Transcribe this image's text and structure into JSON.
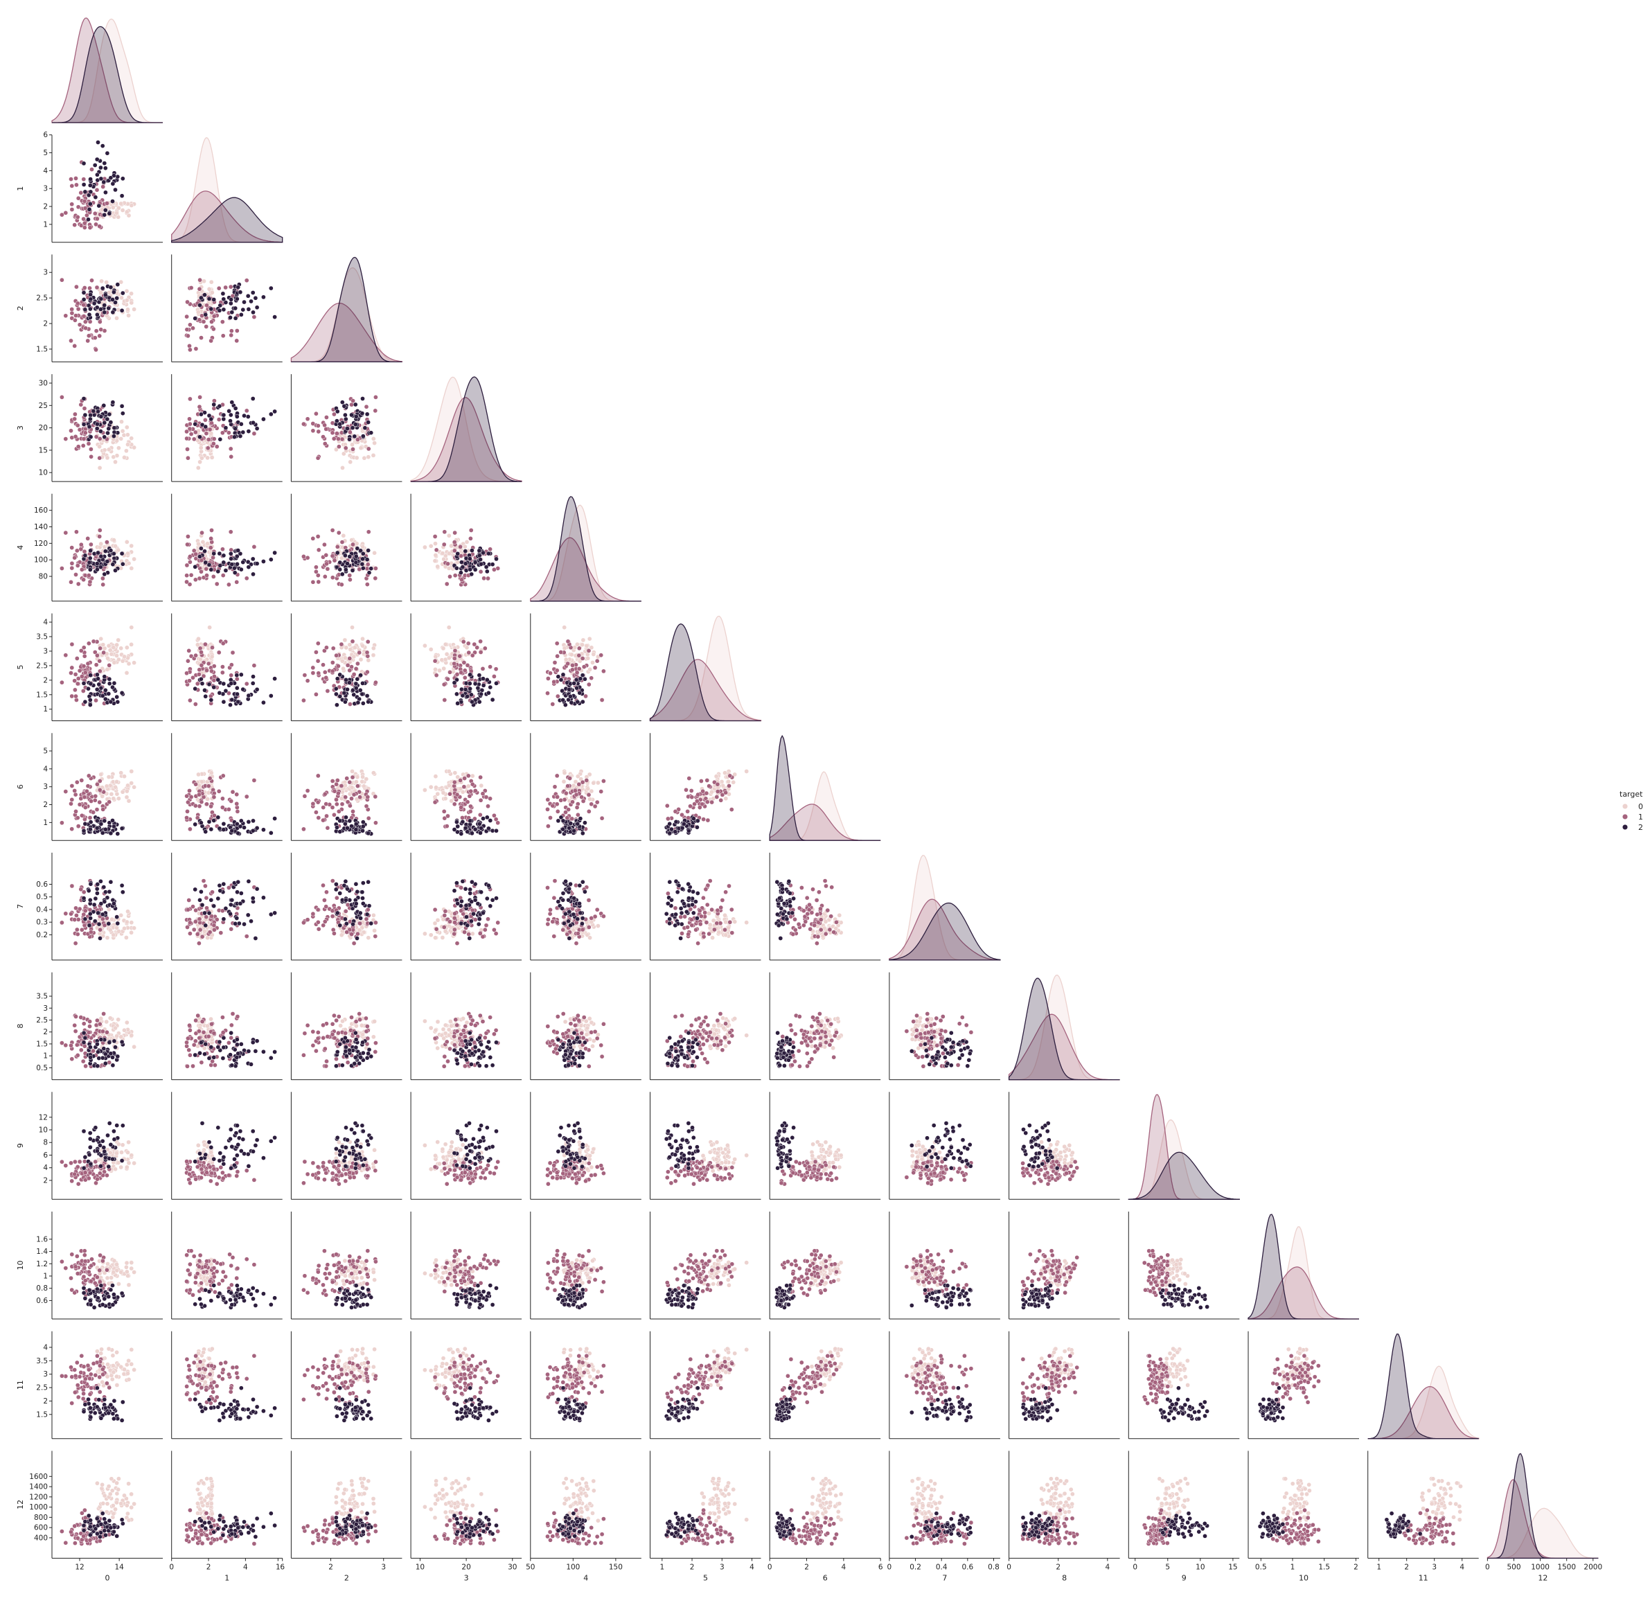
{
  "chart_data": {
    "type": "scatter",
    "subtype": "pairplot-corner",
    "variables": [
      "0",
      "1",
      "2",
      "3",
      "4",
      "5",
      "6",
      "7",
      "8",
      "9",
      "10",
      "11",
      "12"
    ],
    "hue": {
      "name": "target",
      "levels": [
        "0",
        "1",
        "2"
      ],
      "colors": [
        "#ecd2cf",
        "#a5637e",
        "#2d1e3e"
      ]
    },
    "diagonal": "kde",
    "off_diagonal": "scatter",
    "variable_stats": [
      {
        "ranges": [
          [
            12.8,
            14.8
          ],
          [
            11.0,
            13.5
          ],
          [
            12.2,
            14.3
          ]
        ],
        "means": [
          13.7,
          12.3,
          13.1
        ],
        "sds": [
          0.45,
          0.5,
          0.5
        ],
        "lim": [
          10.6,
          16.2
        ],
        "ticks": [
          12,
          14
        ]
      },
      {
        "ranges": [
          [
            1.4,
            2.2
          ],
          [
            0.8,
            4.5
          ],
          [
            1.0,
            5.8
          ]
        ],
        "means": [
          2.0,
          1.8,
          3.3
        ],
        "sds": [
          0.6,
          0.9,
          1.1
        ],
        "lim": [
          0.0,
          6.0
        ],
        "ticks": [
          1,
          2,
          3,
          4,
          5,
          6
        ],
        "xticks": [
          0,
          2,
          4,
          6
        ]
      },
      {
        "ranges": [
          [
            2.1,
            2.9
          ],
          [
            1.4,
            3.2
          ],
          [
            2.0,
            2.9
          ]
        ],
        "means": [
          2.45,
          2.25,
          2.42
        ],
        "sds": [
          0.22,
          0.3,
          0.18
        ],
        "lim": [
          1.25,
          3.35
        ],
        "ticks": [
          1.5,
          2.0,
          2.5,
          3.0
        ],
        "xticks": [
          1,
          2,
          3
        ]
      },
      {
        "ranges": [
          [
            11,
            25
          ],
          [
            10.5,
            30
          ],
          [
            17,
            27
          ]
        ],
        "means": [
          17.0,
          20.2,
          21.4
        ],
        "sds": [
          2.5,
          3.3,
          2.3
        ],
        "lim": [
          8,
          32
        ],
        "ticks": [
          10,
          15,
          20,
          25,
          30
        ],
        "xticks": [
          10,
          20,
          30
        ]
      },
      {
        "ranges": [
          [
            89,
            132
          ],
          [
            70,
            162
          ],
          [
            80,
            123
          ]
        ],
        "means": [
          106,
          94,
          99
        ],
        "sds": [
          10,
          16,
          11
        ],
        "lim": [
          50,
          180
        ],
        "ticks": [
          80,
          100,
          120,
          140,
          160
        ],
        "xticks": [
          50,
          100,
          150
        ]
      },
      {
        "ranges": [
          [
            2.2,
            3.9
          ],
          [
            1.1,
            3.5
          ],
          [
            1.0,
            2.8
          ]
        ],
        "means": [
          2.85,
          2.25,
          1.7
        ],
        "sds": [
          0.35,
          0.55,
          0.35
        ],
        "lim": [
          0.6,
          4.3
        ],
        "ticks": [
          1.0,
          1.5,
          2.0,
          2.5,
          3.0,
          3.5,
          4.0
        ],
        "xticks": [
          1,
          2,
          3,
          4
        ]
      },
      {
        "ranges": [
          [
            2.2,
            3.9
          ],
          [
            0.6,
            5.1
          ],
          [
            0.35,
            1.3
          ]
        ],
        "means": [
          2.98,
          2.08,
          0.78
        ],
        "sds": [
          0.4,
          0.7,
          0.3
        ],
        "lim": [
          0,
          6
        ],
        "ticks": [
          1,
          2,
          3,
          4,
          5
        ],
        "xticks": [
          0,
          2,
          4,
          6
        ]
      },
      {
        "ranges": [
          [
            0.17,
            0.5
          ],
          [
            0.13,
            0.66
          ],
          [
            0.17,
            0.63
          ]
        ],
        "means": [
          0.29,
          0.36,
          0.45
        ],
        "sds": [
          0.07,
          0.12,
          0.12
        ],
        "lim": [
          0.0,
          0.85
        ],
        "ticks": [
          0.2,
          0.3,
          0.4,
          0.5,
          0.6
        ],
        "xticks": [
          0.0,
          0.2,
          0.4,
          0.6,
          0.8
        ]
      },
      {
        "ranges": [
          [
            1.2,
            2.9
          ],
          [
            0.4,
            3.6
          ],
          [
            0.55,
            2.7
          ]
        ],
        "means": [
          1.9,
          1.6,
          1.15
        ],
        "sds": [
          0.4,
          0.6,
          0.4
        ],
        "lim": [
          0.0,
          4.5
        ],
        "ticks": [
          0.5,
          1.0,
          1.5,
          2.0,
          2.5,
          3.0,
          3.5
        ],
        "xticks": [
          0,
          2,
          4
        ]
      },
      {
        "ranges": [
          [
            3.5,
            8.9
          ],
          [
            1.3,
            6.0
          ],
          [
            3.9,
            13.0
          ]
        ],
        "means": [
          5.5,
          3.1,
          7.4
        ],
        "sds": [
          1.2,
          0.9,
          2.3
        ],
        "lim": [
          -1,
          16
        ],
        "ticks": [
          2,
          4,
          6,
          8,
          10,
          12
        ],
        "xticks": [
          0,
          5,
          10,
          15
        ]
      },
      {
        "ranges": [
          [
            0.82,
            1.28
          ],
          [
            0.69,
            1.71
          ],
          [
            0.48,
            0.96
          ]
        ],
        "means": [
          1.06,
          1.06,
          0.68
        ],
        "sds": [
          0.12,
          0.2,
          0.11
        ],
        "lim": [
          0.3,
          2.05
        ],
        "ticks": [
          0.6,
          0.8,
          1.0,
          1.2,
          1.4,
          1.6
        ],
        "xticks": [
          0.5,
          1.0,
          1.5,
          2.0
        ]
      },
      {
        "ranges": [
          [
            2.5,
            4.0
          ],
          [
            1.6,
            3.7
          ],
          [
            1.27,
            2.5
          ]
        ],
        "means": [
          3.15,
          2.8,
          1.68
        ],
        "sds": [
          0.36,
          0.5,
          0.27
        ],
        "lim": [
          0.6,
          4.6
        ],
        "ticks": [
          1.5,
          2.0,
          2.5,
          3.0,
          3.5,
          4.0
        ],
        "xticks": [
          1,
          2,
          3,
          4
        ]
      },
      {
        "ranges": [
          [
            680,
            1680
          ],
          [
            278,
            985
          ],
          [
            415,
            880
          ]
        ],
        "means": [
          1115,
          520,
          630
        ],
        "sds": [
          220,
          160,
          120
        ],
        "lim": [
          0,
          2100
        ],
        "ticks": [
          400,
          600,
          800,
          1000,
          1200,
          1400,
          1600
        ],
        "xticks": [
          0,
          500,
          1000,
          1500,
          2000
        ]
      }
    ],
    "legend": {
      "title": "target",
      "position": "center-right"
    }
  }
}
